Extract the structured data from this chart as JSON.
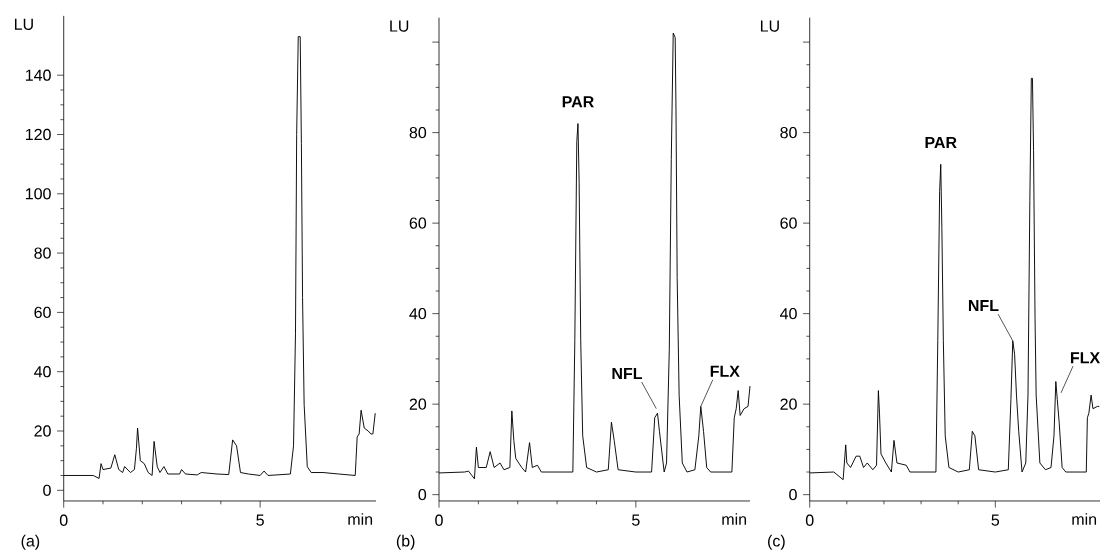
{
  "chart_data": [
    {
      "type": "line",
      "title": "(a)",
      "xlabel": "min",
      "ylabel": "LU",
      "marker": "none",
      "x": [
        0,
        0.75,
        0.9,
        0.95,
        1.0,
        1.2,
        1.3,
        1.4,
        1.5,
        1.55,
        1.7,
        1.8,
        1.85,
        1.88,
        1.95,
        2.05,
        2.15,
        2.25,
        2.3,
        2.38,
        2.45,
        2.55,
        2.65,
        2.95,
        3.0,
        3.1,
        3.4,
        3.5,
        3.9,
        4.2,
        4.3,
        4.4,
        4.5,
        4.7,
        5.0,
        5.1,
        5.2,
        5.77,
        5.85,
        5.9,
        5.93,
        5.97,
        6.02,
        6.05,
        6.08,
        6.12,
        6.2,
        6.3,
        6.6,
        7.0,
        7.42,
        7.44,
        7.47,
        7.52,
        7.57,
        7.65,
        7.75,
        7.82,
        7.87,
        7.93
      ],
      "series": [
        {
          "color": "#000000",
          "values": [
            5,
            5,
            4,
            9,
            7,
            7.5,
            12,
            7,
            6,
            8,
            6,
            7,
            14,
            21,
            10,
            9,
            6,
            5,
            16.5,
            8,
            6,
            8,
            5.5,
            5.5,
            7,
            5.5,
            5.2,
            6,
            5.5,
            5.3,
            17,
            15,
            6,
            5.5,
            5,
            6.5,
            5,
            5.5,
            15,
            53,
            120,
            153,
            153,
            117,
            65,
            29,
            8,
            6,
            6,
            5.5,
            5,
            10,
            18,
            19,
            27,
            21,
            20,
            19,
            19,
            26
          ]
        }
      ],
      "xlim": [
        0,
        7.95
      ],
      "ylim": [
        -3.6,
        160
      ],
      "xticks": [
        0,
        5
      ],
      "yticks": [
        0,
        20,
        40,
        60,
        80,
        100,
        120,
        140
      ]
    },
    {
      "type": "line",
      "title": "(b)",
      "xlabel": "min",
      "ylabel": "LU",
      "marker": "none",
      "x": [
        0,
        0.65,
        0.75,
        0.9,
        0.95,
        1.0,
        1.2,
        1.3,
        1.4,
        1.55,
        1.65,
        1.8,
        1.85,
        1.9,
        1.95,
        2.1,
        2.2,
        2.3,
        2.37,
        2.5,
        2.6,
        3.4,
        3.45,
        3.5,
        3.53,
        3.56,
        3.6,
        3.65,
        3.75,
        4.0,
        4.3,
        4.38,
        4.45,
        4.55,
        5.0,
        5.4,
        5.48,
        5.55,
        5.6,
        5.72,
        5.78,
        5.85,
        5.9,
        5.95,
        6.0,
        6.02,
        6.05,
        6.1,
        6.18,
        6.3,
        6.5,
        6.6,
        6.65,
        6.72,
        6.8,
        6.9,
        7.44,
        7.5,
        7.55,
        7.6,
        7.65,
        7.75,
        7.85,
        7.9
      ],
      "series": [
        {
          "color": "#000000",
          "values": [
            4.8,
            5,
            5.2,
            3.5,
            10.5,
            6,
            6,
            9.5,
            6,
            7,
            5.5,
            6,
            18.5,
            12,
            8,
            6,
            5,
            11.5,
            6,
            6.5,
            5,
            5,
            34,
            78,
            82,
            69,
            34,
            13,
            6,
            5,
            5.5,
            16,
            12,
            5.5,
            5,
            5,
            17,
            18,
            14,
            5,
            7,
            32,
            74,
            102,
            101,
            85,
            48,
            22,
            7,
            5,
            5.5,
            13,
            19.5,
            14,
            6,
            5,
            5,
            17,
            19,
            23,
            17.5,
            19,
            19.5,
            24
          ]
        }
      ],
      "xlim": [
        0,
        7.9
      ],
      "ylim": [
        -1.4,
        105.4
      ],
      "xticks": [
        0,
        5
      ],
      "yticks": [
        0,
        20,
        40,
        60,
        80,
        {
          "value": 100,
          "label": null
        }
      ],
      "annotations": [
        {
          "text": "PAR",
          "x": 3.53,
          "y": 82
        },
        {
          "text": "NFL",
          "x": 5.52,
          "y": 19
        },
        {
          "text": "FLX",
          "x": 6.65,
          "y": 19.5
        }
      ]
    },
    {
      "type": "line",
      "title": "(c)",
      "xlabel": "min",
      "ylabel": "LU",
      "marker": "none",
      "x": [
        0,
        0.65,
        0.9,
        0.97,
        1.0,
        1.1,
        1.25,
        1.35,
        1.45,
        1.55,
        1.7,
        1.8,
        1.85,
        1.88,
        1.92,
        2.05,
        2.2,
        2.27,
        2.35,
        2.6,
        2.7,
        3.4,
        3.45,
        3.5,
        3.53,
        3.56,
        3.6,
        3.65,
        3.75,
        4.0,
        4.3,
        4.38,
        4.45,
        4.55,
        5.0,
        5.35,
        5.42,
        5.47,
        5.52,
        5.57,
        5.63,
        5.72,
        5.82,
        5.88,
        5.93,
        5.97,
        6.0,
        6.03,
        6.07,
        6.1,
        6.2,
        6.35,
        6.5,
        6.58,
        6.63,
        6.67,
        6.72,
        6.8,
        6.9,
        7.45,
        7.48,
        7.52,
        7.58,
        7.63,
        7.75,
        7.8
      ],
      "series": [
        {
          "color": "#000000",
          "values": [
            4.8,
            5,
            3.3,
            11,
            7,
            6,
            8.5,
            8.5,
            6,
            7,
            5.5,
            6.5,
            23,
            18,
            9,
            7,
            5,
            12,
            7,
            6.5,
            5,
            5,
            34,
            67,
            73,
            59,
            34,
            13,
            6,
            5,
            5.5,
            14,
            13,
            5.5,
            5,
            5.5,
            21,
            34,
            31,
            22,
            14,
            5,
            7,
            22,
            65,
            92,
            92,
            76,
            39,
            22,
            7,
            5.5,
            6,
            13,
            25,
            21,
            16,
            6,
            5,
            5,
            17,
            18,
            22,
            19,
            19.5,
            19.5
          ]
        }
      ],
      "xlim": [
        0,
        7.82
      ],
      "ylim": [
        -1.4,
        105.4
      ],
      "xticks": [
        0,
        5
      ],
      "yticks": [
        0,
        20,
        40,
        60,
        80,
        {
          "value": 100,
          "label": null
        }
      ],
      "annotations": [
        {
          "text": "PAR",
          "x": 3.53,
          "y": 73
        },
        {
          "text": "NFL",
          "x": 5.47,
          "y": 34
        },
        {
          "text": "FLX",
          "x": 6.77,
          "y": 22.5
        }
      ]
    }
  ]
}
